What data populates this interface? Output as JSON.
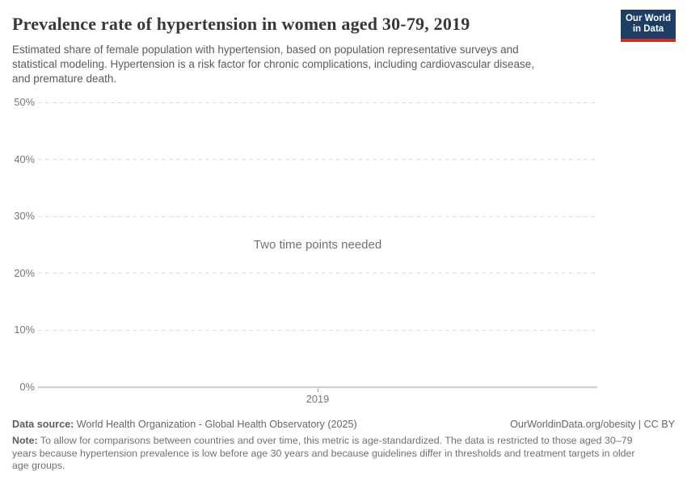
{
  "header": {
    "title": "Prevalence rate of hypertension in women aged 30-79, 2019",
    "subtitle_lines": [
      "Estimated share of female population with hypertension, based on population representative surveys and",
      "statistical modeling. Hypertension is a risk factor for chronic complications, including cardiovascular disease,",
      "and premature death."
    ],
    "logo": {
      "line1": "Our World",
      "line2": "in Data"
    }
  },
  "chart_data": {
    "type": "line",
    "title": "Prevalence rate of hypertension in women aged 30-79, 2019",
    "xlabel": "",
    "ylabel": "",
    "ylim": [
      0,
      50
    ],
    "grid": "horizontal-dashed",
    "legend": "none",
    "yticks": [
      {
        "value": 50,
        "label": "50%"
      },
      {
        "value": 40,
        "label": "40%"
      },
      {
        "value": 30,
        "label": "30%"
      },
      {
        "value": 20,
        "label": "20%"
      },
      {
        "value": 10,
        "label": "10%"
      },
      {
        "value": 0,
        "label": "0%"
      }
    ],
    "xticks": [
      "2019"
    ],
    "series": [],
    "empty_state_message": "Two time points needed"
  },
  "footer": {
    "source_label": "Data source:",
    "source_text": " World Health Organization - Global Health Observatory (2025)",
    "link_text": "OurWorldinData.org/obesity | CC BY",
    "note_label": "Note:",
    "note_lines": [
      " To allow for comparisons between countries and over time, this metric is age-standardized. The data is restricted to those aged 30–79",
      "years because hypertension prevalence is low before age 30 years and because guidelines differ in thresholds and treatment targets in older",
      "age groups."
    ]
  },
  "colors": {
    "logo_background": "#1d3d63",
    "logo_stripe": "#c5302b",
    "title_text": "#383838",
    "subtitle_text": "#565c63",
    "axis_tick_text": "#737780",
    "gridline": "#dcdfe2",
    "axis_baseline": "#c9cbce",
    "empty_message_text": "#6f7278",
    "footer_text": "#63666b",
    "note_text": "#6e7176"
  }
}
